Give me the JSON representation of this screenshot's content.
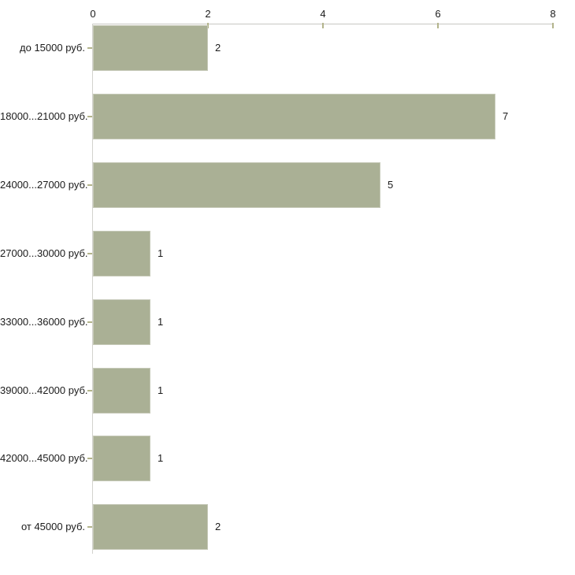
{
  "chart_data": {
    "type": "bar",
    "orientation": "horizontal",
    "title": "",
    "xlabel": "",
    "ylabel": "",
    "categories": [
      "до 15000 руб.",
      "18000...21000 руб.",
      "24000...27000 руб.",
      "27000...30000 руб.",
      "33000...36000 руб.",
      "39000...42000 руб.",
      "42000...45000 руб.",
      "от 45000 руб."
    ],
    "values": [
      2,
      7,
      5,
      1,
      1,
      1,
      1,
      2
    ],
    "value_labels": [
      "2",
      "7",
      "5",
      "1",
      "1",
      "1",
      "1",
      "2"
    ],
    "x_ticks": [
      "0",
      "2",
      "4",
      "6",
      "8"
    ],
    "xlim": [
      0,
      8
    ],
    "grid": false,
    "legend_position": "none",
    "x_axis_position": "top",
    "colors": {
      "bar_fill": "#aab095",
      "bar_border": "#c6c9b8",
      "axis_line": "#c8c8c2",
      "tick_mark": "#b3b48b",
      "label_text": "#1b1b1b",
      "background": "#ffffff"
    }
  }
}
